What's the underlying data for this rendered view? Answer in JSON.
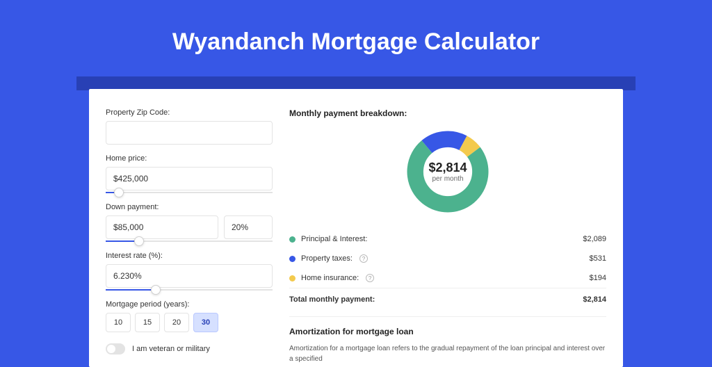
{
  "page": {
    "title": "Wyandanch Mortgage Calculator",
    "background_color": "#3757e6",
    "band_color": "#2840b5",
    "card_color": "#ffffff"
  },
  "form": {
    "zip": {
      "label": "Property Zip Code:",
      "value": ""
    },
    "home_price": {
      "label": "Home price:",
      "value": "$425,000",
      "slider_percent": 8
    },
    "down_payment": {
      "label": "Down payment:",
      "value": "$85,000",
      "percent": "20%",
      "slider_percent": 20
    },
    "interest_rate": {
      "label": "Interest rate (%):",
      "value": "6.230%",
      "slider_percent": 30
    },
    "period": {
      "label": "Mortgage period (years):",
      "options": [
        "10",
        "15",
        "20",
        "30"
      ],
      "selected": "30"
    },
    "veteran": {
      "label": "I am veteran or military",
      "checked": false
    }
  },
  "breakdown": {
    "title": "Monthly payment breakdown:",
    "center_amount": "$2,814",
    "center_sub": "per month",
    "donut": {
      "segments": [
        {
          "key": "principal_interest",
          "value": 2089,
          "color": "#4cb28e"
        },
        {
          "key": "property_taxes",
          "value": 531,
          "color": "#3757e6"
        },
        {
          "key": "home_insurance",
          "value": 194,
          "color": "#f3ca4d"
        }
      ],
      "stroke_width": 18
    },
    "items": [
      {
        "label": "Principal & Interest:",
        "value": "$2,089",
        "color": "#4cb28e",
        "info": false
      },
      {
        "label": "Property taxes:",
        "value": "$531",
        "color": "#3757e6",
        "info": true
      },
      {
        "label": "Home insurance:",
        "value": "$194",
        "color": "#f3ca4d",
        "info": true
      }
    ],
    "total": {
      "label": "Total monthly payment:",
      "value": "$2,814"
    }
  },
  "amortization": {
    "title": "Amortization for mortgage loan",
    "text": "Amortization for a mortgage loan refers to the gradual repayment of the loan principal and interest over a specified"
  }
}
